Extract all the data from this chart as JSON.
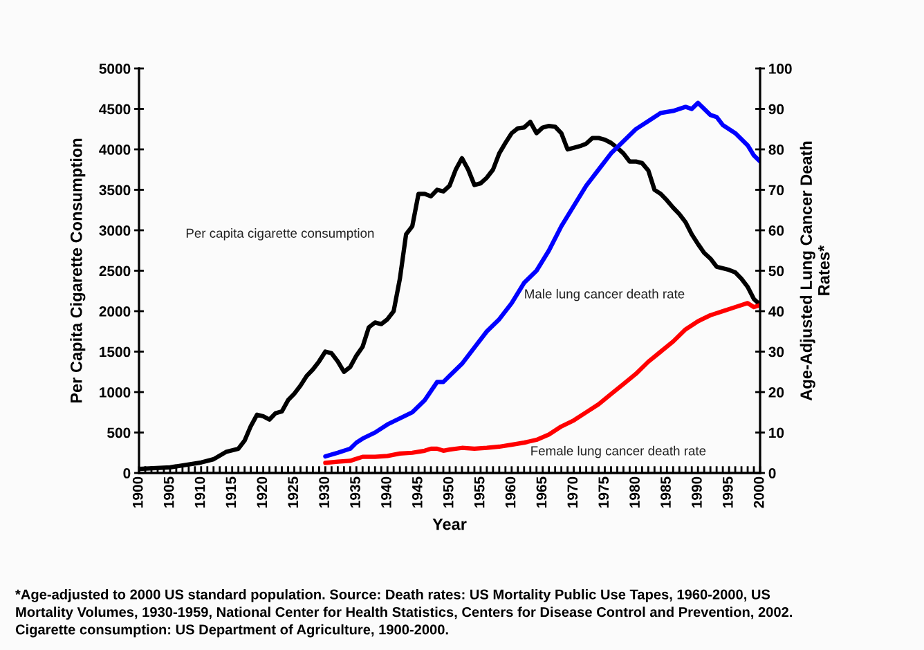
{
  "chart_data": {
    "type": "line",
    "xlabel": "Year",
    "ylabel": "Per Capita Cigarette Consumption",
    "y2label": "Age-Adjusted Lung Cancer Death\nRates*",
    "xlim": [
      1900,
      2000
    ],
    "ylim": [
      0,
      5000
    ],
    "yticks": [
      0,
      500,
      1000,
      1500,
      2000,
      2500,
      3000,
      3500,
      4000,
      4500,
      5000
    ],
    "y2lim": [
      0,
      100
    ],
    "y2ticks": [
      0,
      10,
      20,
      30,
      40,
      50,
      60,
      70,
      80,
      90,
      100
    ],
    "xticks": [
      1900,
      {
        "value": 1901,
        "label": null
      },
      {
        "value": 1902,
        "label": null
      },
      {
        "value": 1903,
        "label": null
      },
      {
        "value": 1904,
        "label": null
      },
      1905,
      {
        "value": 1906,
        "label": null
      },
      {
        "value": 1907,
        "label": null
      },
      {
        "value": 1908,
        "label": null
      },
      {
        "value": 1909,
        "label": null
      },
      1910,
      {
        "value": 1911,
        "label": null
      },
      {
        "value": 1912,
        "label": null
      },
      {
        "value": 1913,
        "label": null
      },
      {
        "value": 1914,
        "label": null
      },
      1915,
      {
        "value": 1916,
        "label": null
      },
      {
        "value": 1917,
        "label": null
      },
      {
        "value": 1918,
        "label": null
      },
      {
        "value": 1919,
        "label": null
      },
      1920,
      {
        "value": 1921,
        "label": null
      },
      {
        "value": 1922,
        "label": null
      },
      {
        "value": 1923,
        "label": null
      },
      {
        "value": 1924,
        "label": null
      },
      1925,
      {
        "value": 1926,
        "label": null
      },
      {
        "value": 1927,
        "label": null
      },
      {
        "value": 1928,
        "label": null
      },
      {
        "value": 1929,
        "label": null
      },
      1930,
      {
        "value": 1931,
        "label": null
      },
      {
        "value": 1932,
        "label": null
      },
      {
        "value": 1933,
        "label": null
      },
      {
        "value": 1934,
        "label": null
      },
      1935,
      {
        "value": 1936,
        "label": null
      },
      {
        "value": 1937,
        "label": null
      },
      {
        "value": 1938,
        "label": null
      },
      {
        "value": 1939,
        "label": null
      },
      1940,
      {
        "value": 1941,
        "label": null
      },
      {
        "value": 1942,
        "label": null
      },
      {
        "value": 1943,
        "label": null
      },
      {
        "value": 1944,
        "label": null
      },
      1945,
      {
        "value": 1946,
        "label": null
      },
      {
        "value": 1947,
        "label": null
      },
      {
        "value": 1948,
        "label": null
      },
      {
        "value": 1949,
        "label": null
      },
      1950,
      {
        "value": 1951,
        "label": null
      },
      {
        "value": 1952,
        "label": null
      },
      {
        "value": 1953,
        "label": null
      },
      {
        "value": 1954,
        "label": null
      },
      1955,
      {
        "value": 1956,
        "label": null
      },
      {
        "value": 1957,
        "label": null
      },
      {
        "value": 1958,
        "label": null
      },
      {
        "value": 1959,
        "label": null
      },
      1960,
      {
        "value": 1961,
        "label": null
      },
      {
        "value": 1962,
        "label": null
      },
      {
        "value": 1963,
        "label": null
      },
      {
        "value": 1964,
        "label": null
      },
      1965,
      {
        "value": 1966,
        "label": null
      },
      {
        "value": 1967,
        "label": null
      },
      {
        "value": 1968,
        "label": null
      },
      {
        "value": 1969,
        "label": null
      },
      1970,
      {
        "value": 1971,
        "label": null
      },
      {
        "value": 1972,
        "label": null
      },
      {
        "value": 1973,
        "label": null
      },
      {
        "value": 1974,
        "label": null
      },
      1975,
      {
        "value": 1976,
        "label": null
      },
      {
        "value": 1977,
        "label": null
      },
      {
        "value": 1978,
        "label": null
      },
      {
        "value": 1979,
        "label": null
      },
      1980,
      {
        "value": 1981,
        "label": null
      },
      {
        "value": 1982,
        "label": null
      },
      {
        "value": 1983,
        "label": null
      },
      {
        "value": 1984,
        "label": null
      },
      1985,
      {
        "value": 1986,
        "label": null
      },
      {
        "value": 1987,
        "label": null
      },
      {
        "value": 1988,
        "label": null
      },
      {
        "value": 1989,
        "label": null
      },
      1990,
      {
        "value": 1991,
        "label": null
      },
      {
        "value": 1992,
        "label": null
      },
      {
        "value": 1993,
        "label": null
      },
      {
        "value": 1994,
        "label": null
      },
      1995,
      {
        "value": 1996,
        "label": null
      },
      {
        "value": 1997,
        "label": null
      },
      {
        "value": 1998,
        "label": null
      },
      {
        "value": 1999,
        "label": null
      },
      2000
    ],
    "grid": false,
    "legend": false,
    "marker": "none",
    "line_style": "solid",
    "series": [
      {
        "name": "Per capita cigarette consumption",
        "color": "#000000",
        "x": [
          1900,
          1905,
          1910,
          1912,
          1914,
          1916,
          1917,
          1918,
          1919,
          1920,
          1921,
          1922,
          1923,
          1924,
          1925,
          1926,
          1927,
          1928,
          1929,
          1930,
          1931,
          1932,
          1933,
          1934,
          1935,
          1936,
          1937,
          1938,
          1939,
          1940,
          1941,
          1942,
          1943,
          1944,
          1945,
          1946,
          1947,
          1948,
          1949,
          1950,
          1951,
          1952,
          1953,
          1954,
          1955,
          1956,
          1957,
          1958,
          1959,
          1960,
          1961,
          1962,
          1963,
          1964,
          1965,
          1966,
          1967,
          1968,
          1969,
          1970,
          1971,
          1972,
          1973,
          1974,
          1975,
          1976,
          1977,
          1978,
          1979,
          1980,
          1981,
          1982,
          1983,
          1984,
          1985,
          1986,
          1987,
          1988,
          1989,
          1990,
          1991,
          1992,
          1993,
          1994,
          1995,
          1996,
          1997,
          1998,
          1999,
          2000
        ],
        "values": [
          50,
          70,
          130,
          170,
          260,
          300,
          400,
          580,
          720,
          700,
          660,
          740,
          760,
          900,
          980,
          1080,
          1200,
          1280,
          1380,
          1500,
          1480,
          1380,
          1250,
          1310,
          1450,
          1560,
          1800,
          1860,
          1840,
          1900,
          2000,
          2400,
          2950,
          3050,
          3450,
          3450,
          3420,
          3500,
          3480,
          3550,
          3750,
          3890,
          3750,
          3560,
          3580,
          3650,
          3750,
          3950,
          4080,
          4200,
          4260,
          4270,
          4340,
          4200,
          4270,
          4290,
          4280,
          4200,
          4000,
          4020,
          4040,
          4070,
          4140,
          4140,
          4120,
          4080,
          4020,
          3950,
          3850,
          3850,
          3830,
          3740,
          3500,
          3450,
          3370,
          3280,
          3200,
          3100,
          2950,
          2830,
          2720,
          2650,
          2550,
          2530,
          2510,
          2480,
          2400,
          2300,
          2150,
          2080
        ]
      },
      {
        "name": "Male lung cancer death rate",
        "color": "#0000ff",
        "axis": "y2",
        "x": [
          1930,
          1932,
          1934,
          1935,
          1936,
          1938,
          1940,
          1942,
          1944,
          1946,
          1948,
          1949,
          1950,
          1952,
          1954,
          1956,
          1958,
          1960,
          1962,
          1964,
          1966,
          1968,
          1970,
          1972,
          1974,
          1976,
          1978,
          1980,
          1982,
          1984,
          1986,
          1988,
          1989,
          1990,
          1991,
          1992,
          1993,
          1994,
          1996,
          1998,
          1999,
          2000
        ],
        "values": [
          4.1,
          5,
          6,
          7.5,
          8.5,
          10,
          12,
          13.5,
          15,
          18,
          22.5,
          22.5,
          24,
          27,
          31,
          35,
          38,
          42,
          47,
          50,
          55,
          61,
          66,
          71,
          75,
          79,
          82,
          85,
          87,
          89,
          89.5,
          90.5,
          90,
          91.5,
          90,
          88.5,
          88,
          86,
          84,
          81,
          78.5,
          77
        ]
      },
      {
        "name": "Female lung cancer death rate",
        "color": "#ff0000",
        "axis": "y2",
        "x": [
          1930,
          1932,
          1934,
          1936,
          1938,
          1940,
          1942,
          1944,
          1946,
          1947,
          1948,
          1949,
          1950,
          1952,
          1954,
          1956,
          1958,
          1960,
          1962,
          1964,
          1966,
          1968,
          1970,
          1972,
          1974,
          1976,
          1978,
          1980,
          1982,
          1984,
          1986,
          1988,
          1990,
          1992,
          1994,
          1996,
          1998,
          1999,
          2000
        ],
        "values": [
          2.5,
          2.8,
          3,
          4,
          4,
          4.2,
          4.8,
          5,
          5.5,
          6,
          6,
          5.5,
          5.8,
          6.2,
          6,
          6.2,
          6.5,
          7,
          7.5,
          8.2,
          9.5,
          11.5,
          13,
          15,
          17,
          19.5,
          22,
          24.5,
          27.5,
          30,
          32.5,
          35.5,
          37.5,
          39,
          40,
          41,
          42,
          41,
          41.5
        ]
      }
    ],
    "annotations": [
      "*Age-adjusted to 2000 US standard population. Source: Death rates: US Mortality Public Use Tapes, 1960-2000, US\nMortality Volumes, 1930-1959, National Center for Health Statistics, Centers for Disease Control and Prevention, 2002.\nCigarette consumption: US Department of Agriculture, 1900-2000."
    ]
  }
}
